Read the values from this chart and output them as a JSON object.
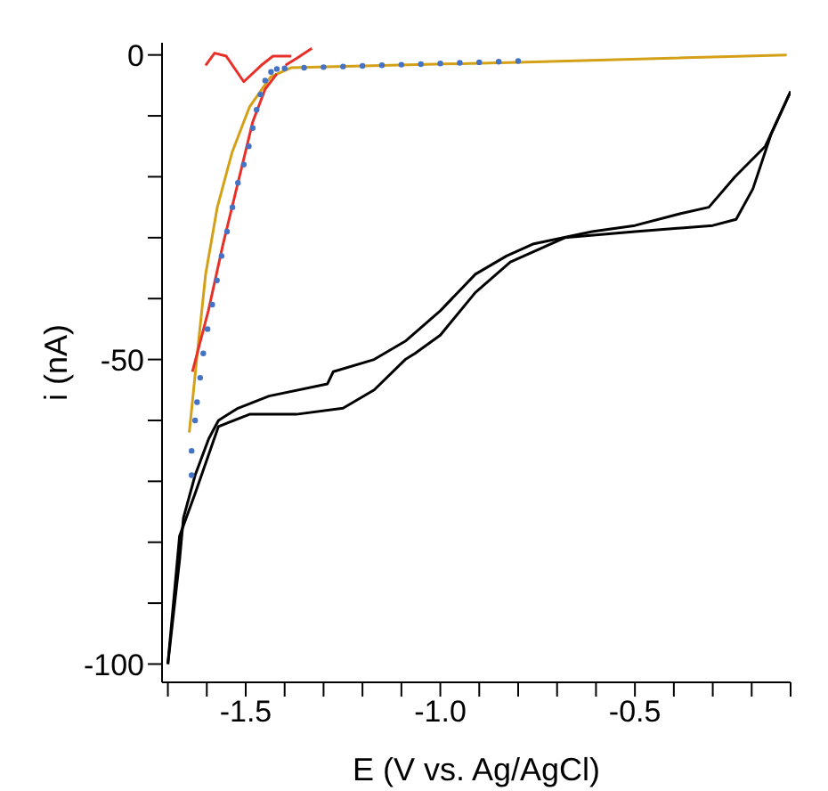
{
  "chart_data": {
    "type": "line",
    "xlabel": "E (V vs. Ag/AgCl)",
    "ylabel": "i (nA)",
    "xlim": [
      -1.715,
      -0.1
    ],
    "ylim": [
      -103,
      2
    ],
    "xticks": [
      {
        "value": -1.7,
        "label": null
      },
      {
        "value": -1.6,
        "label": null
      },
      -1.5,
      {
        "value": -1.4,
        "label": null
      },
      {
        "value": -1.3,
        "label": null
      },
      {
        "value": -1.2,
        "label": null
      },
      {
        "value": -1.1,
        "label": null
      },
      {
        "value": -1.0,
        "label": "-1.0"
      },
      {
        "value": -0.9,
        "label": null
      },
      {
        "value": -0.8,
        "label": null
      },
      {
        "value": -0.7,
        "label": null
      },
      {
        "value": -0.6,
        "label": null
      },
      -0.5,
      {
        "value": -0.4,
        "label": null
      },
      {
        "value": -0.3,
        "label": null
      },
      {
        "value": -0.2,
        "label": null
      },
      {
        "value": -0.1,
        "label": null
      }
    ],
    "yticks": [
      -100,
      {
        "value": -90,
        "label": null
      },
      {
        "value": -80,
        "label": null
      },
      {
        "value": -70,
        "label": null
      },
      {
        "value": -60,
        "label": null
      },
      -50,
      {
        "value": -40,
        "label": null
      },
      {
        "value": -30,
        "label": null
      },
      {
        "value": -20,
        "label": null
      },
      {
        "value": -10,
        "label": null
      },
      0
    ],
    "grid": false,
    "marker": "none",
    "line_style": "solid",
    "series": [
      {
        "color": "#000000",
        "x": [
          -0.1,
          -0.165,
          -0.243,
          -0.31,
          -0.38,
          -0.5,
          -0.61,
          -0.76,
          -0.83,
          -0.91,
          -1.0,
          -1.09,
          -1.17,
          -1.275,
          -1.29,
          -1.44,
          -1.52,
          -1.57,
          -1.595,
          -1.63,
          -1.66,
          -1.67,
          -1.686,
          -1.7
        ],
        "values": [
          -6,
          -15,
          -20,
          -25,
          -26,
          -28,
          -29,
          -31,
          -33,
          -36,
          -42,
          -47,
          -50,
          -52,
          -54,
          -56,
          -58,
          -60,
          -63,
          -69,
          -76,
          -83,
          -92,
          -100
        ]
      },
      {
        "color": "#000000",
        "x": [
          -1.7,
          -1.67,
          -1.63,
          -1.57,
          -1.49,
          -1.37,
          -1.25,
          -1.17,
          -1.09,
          -1.065,
          -1.0,
          -0.91,
          -0.82,
          -0.68,
          -0.5,
          -0.3,
          -0.24,
          -0.197,
          -0.15,
          -0.1
        ],
        "values": [
          -100,
          -79,
          -72,
          -61,
          -59,
          -59,
          -58,
          -55,
          -50,
          -49,
          -46,
          -39,
          -34,
          -30,
          -29,
          -28,
          -27,
          -22,
          -13,
          -6
        ]
      },
      {
        "color": "#d4a017",
        "x": [
          -1.645,
          -1.626,
          -1.603,
          -1.573,
          -1.535,
          -1.49,
          -1.436,
          -1.384,
          -0.8,
          -0.11
        ],
        "values": [
          -62,
          -50,
          -36,
          -25,
          -16,
          -8.5,
          -3.6,
          -2.1,
          -1.2,
          0
        ]
      },
      {
        "color": "#e8302a",
        "x": [
          -1.637,
          -1.596,
          -1.558,
          -1.52,
          -1.482,
          -1.45,
          -1.42
        ],
        "values": [
          -52,
          -42,
          -31,
          -21,
          -11,
          -5.6,
          -3.1
        ]
      },
      {
        "color": "#e8302a",
        "x": [
          -1.603,
          -1.58,
          -1.55,
          -1.505,
          -1.46,
          -1.43,
          -1.383
        ],
        "values": [
          -1.7,
          0.3,
          -0.2,
          -4.4,
          -1.7,
          -0.2,
          -0.2
        ]
      },
      {
        "color": "#e8302a",
        "x": [
          -1.398,
          -1.37,
          -1.33
        ],
        "values": [
          -1.7,
          -0.6,
          1.1
        ]
      },
      {
        "type": "scatter",
        "color": "#4472c4",
        "marker": "circle",
        "x": [
          -1.639,
          -1.639,
          -1.63,
          -1.625,
          -1.617,
          -1.609,
          -1.598,
          -1.586,
          -1.574,
          -1.562,
          -1.548,
          -1.534,
          -1.52,
          -1.505,
          -1.492,
          -1.482,
          -1.472,
          -1.462,
          -1.45,
          -1.435,
          -1.42,
          -1.4,
          -1.35,
          -1.3,
          -1.25,
          -1.2,
          -1.15,
          -1.1,
          -1.05,
          -1.0,
          -0.95,
          -0.9,
          -0.85,
          -0.8
        ],
        "values": [
          -69,
          -65,
          -60,
          -57,
          -53,
          -49,
          -45,
          -41,
          -37,
          -33,
          -29,
          -25,
          -21,
          -18,
          -15,
          -12,
          -9,
          -6.5,
          -4.2,
          -2.8,
          -2.3,
          -2.2,
          -2.1,
          -2.0,
          -1.9,
          -1.8,
          -1.7,
          -1.6,
          -1.5,
          -1.4,
          -1.3,
          -1.2,
          -1.1,
          -1.0
        ]
      }
    ]
  }
}
